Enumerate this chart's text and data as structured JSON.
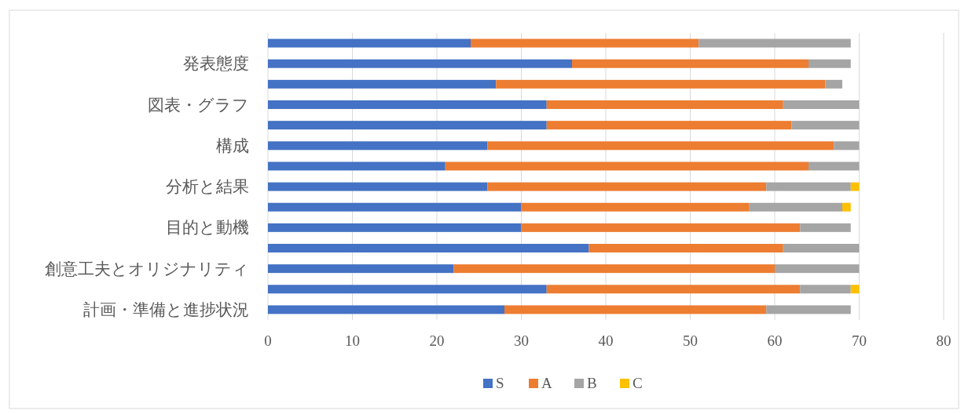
{
  "chart_data": {
    "type": "bar",
    "orientation": "horizontal",
    "stacked": true,
    "categories": [
      null,
      "発表態度",
      null,
      "図表・グラフ",
      null,
      "構成",
      null,
      "分析と結果",
      null,
      "目的と動機",
      null,
      "創意工夫とオリジナリティ",
      null,
      "計画・準備と進捗状況"
    ],
    "series": [
      {
        "name": "S",
        "color": "#4472c4",
        "values": [
          24,
          36,
          27,
          33,
          33,
          26,
          21,
          26,
          30,
          30,
          38,
          22,
          33,
          28
        ]
      },
      {
        "name": "A",
        "color": "#ed7d31",
        "values": [
          27,
          28,
          39,
          28,
          29,
          41,
          43,
          33,
          27,
          33,
          23,
          38,
          30,
          31
        ]
      },
      {
        "name": "B",
        "color": "#a5a5a5",
        "values": [
          18,
          5,
          2,
          9,
          8,
          3,
          6,
          10,
          11,
          6,
          9,
          10,
          6,
          10
        ]
      },
      {
        "name": "C",
        "color": "#ffc000",
        "values": [
          0,
          0,
          0,
          0,
          0,
          0,
          0,
          1,
          1,
          0,
          0,
          0,
          1,
          0
        ]
      }
    ],
    "xlim": [
      0,
      80
    ],
    "xticks": [
      0,
      10,
      20,
      30,
      40,
      50,
      60,
      70,
      80
    ],
    "grid": "x",
    "legend": "bottom"
  }
}
